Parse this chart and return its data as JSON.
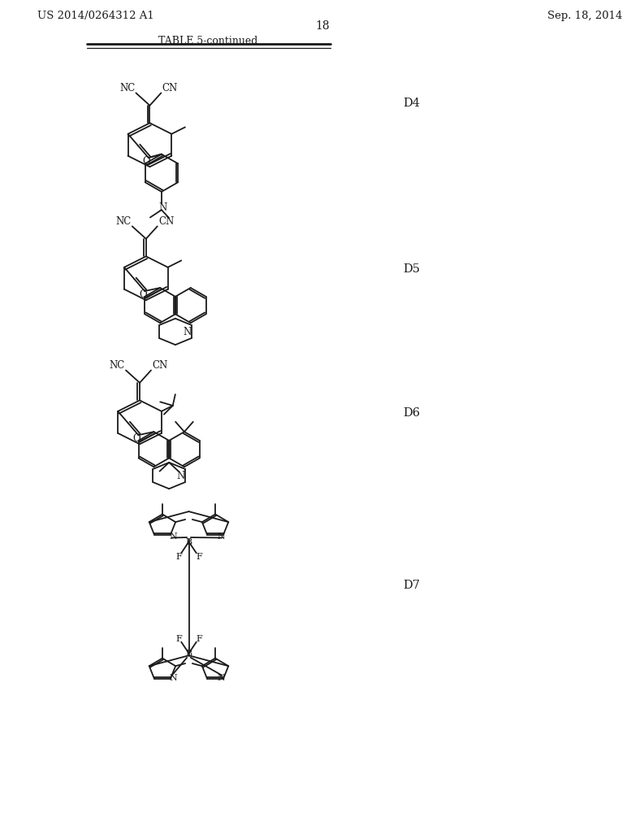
{
  "background_color": "#ffffff",
  "line_color": "#1a1a1a",
  "text_color": "#1a1a1a",
  "header_left": "US 2014/0264312 A1",
  "header_right": "Sep. 18, 2014",
  "page_number": "18",
  "table_title": "TABLE 5-continued"
}
